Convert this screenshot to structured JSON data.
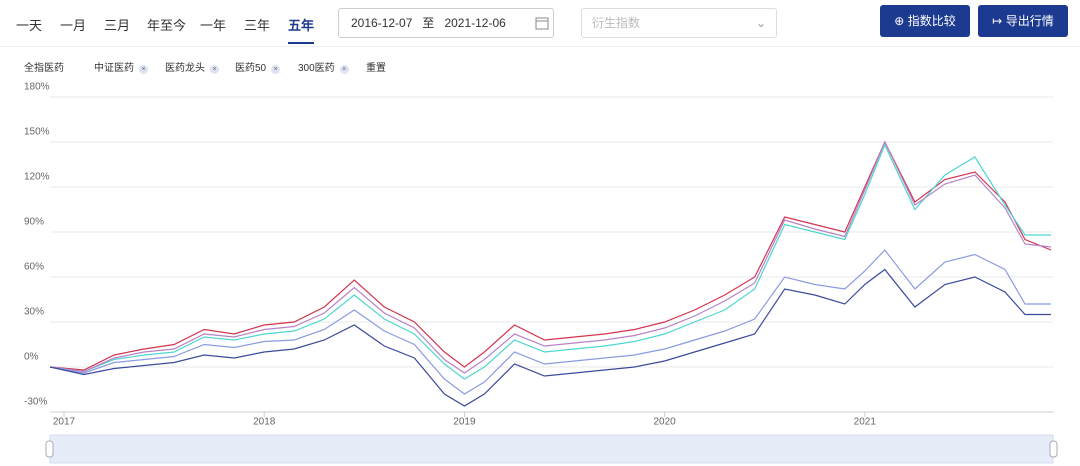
{
  "toolbar": {
    "tabs": [
      "一天",
      "一月",
      "三月",
      "年至今",
      "一年",
      "三年",
      "五年"
    ],
    "active_tab": 6,
    "date_start": "2016-12-07",
    "date_separator": "至",
    "date_end": "2021-12-06",
    "dropdown_placeholder": "衍生指数",
    "compare_button": "指数比较",
    "export_button": "导出行情"
  },
  "filters": {
    "reset": "重置"
  },
  "chart_data": {
    "type": "line",
    "x": [
      2016.93,
      2017.1,
      2017.25,
      2017.4,
      2017.55,
      2017.7,
      2017.85,
      2018.0,
      2018.15,
      2018.3,
      2018.45,
      2018.6,
      2018.75,
      2018.9,
      2019.0,
      2019.1,
      2019.25,
      2019.4,
      2019.55,
      2019.7,
      2019.85,
      2020.0,
      2020.15,
      2020.3,
      2020.45,
      2020.6,
      2020.75,
      2020.9,
      2021.0,
      2021.1,
      2021.25,
      2021.4,
      2021.55,
      2021.7,
      2021.8,
      2021.93
    ],
    "series": [
      {
        "name": "全指医药",
        "color": "#d2344f",
        "values": [
          0,
          -2,
          8,
          12,
          15,
          25,
          22,
          28,
          30,
          40,
          58,
          40,
          30,
          10,
          0,
          10,
          28,
          18,
          20,
          22,
          25,
          30,
          38,
          48,
          60,
          100,
          95,
          90,
          120,
          150,
          110,
          125,
          130,
          110,
          85,
          78
        ]
      },
      {
        "name": "中证医药",
        "color": "#4fd6d0",
        "values": [
          0,
          -3,
          5,
          8,
          10,
          20,
          18,
          22,
          24,
          32,
          48,
          32,
          22,
          2,
          -8,
          0,
          18,
          10,
          12,
          14,
          17,
          22,
          30,
          38,
          52,
          95,
          90,
          85,
          115,
          148,
          105,
          128,
          140,
          108,
          88,
          88
        ]
      },
      {
        "name": "医药龙头",
        "color": "#b782c8",
        "values": [
          0,
          -3,
          6,
          10,
          12,
          22,
          20,
          25,
          27,
          36,
          53,
          36,
          26,
          5,
          -4,
          5,
          22,
          14,
          16,
          18,
          21,
          26,
          34,
          44,
          56,
          98,
          92,
          87,
          118,
          150,
          108,
          122,
          128,
          106,
          82,
          80
        ]
      },
      {
        "name": "医药50",
        "color": "#8b9be0",
        "values": [
          0,
          -4,
          3,
          5,
          7,
          15,
          13,
          17,
          18,
          25,
          38,
          24,
          15,
          -8,
          -18,
          -10,
          10,
          2,
          4,
          6,
          8,
          12,
          18,
          24,
          32,
          60,
          55,
          52,
          64,
          78,
          52,
          70,
          75,
          65,
          42,
          42
        ]
      },
      {
        "name": "300医药",
        "color": "#3c4a9b",
        "values": [
          0,
          -5,
          -1,
          1,
          3,
          8,
          6,
          10,
          12,
          18,
          28,
          14,
          6,
          -18,
          -26,
          -18,
          2,
          -6,
          -4,
          -2,
          0,
          4,
          10,
          16,
          22,
          52,
          48,
          42,
          55,
          65,
          40,
          55,
          60,
          50,
          35,
          35
        ]
      }
    ],
    "xlim": [
      2016.93,
      2021.94
    ],
    "xticks": [
      2017,
      2018,
      2019,
      2020,
      2021
    ],
    "ylim": [
      -30,
      180
    ],
    "yticks": [
      {
        "value": -30,
        "label": "-30%"
      },
      {
        "value": 0,
        "label": "0%"
      },
      {
        "value": 30,
        "label": "30%"
      },
      {
        "value": 60,
        "label": "60%"
      },
      {
        "value": 90,
        "label": "90%"
      },
      {
        "value": 120,
        "label": "120%"
      },
      {
        "value": 150,
        "label": "150%"
      },
      {
        "value": 180,
        "label": "180%"
      }
    ],
    "grid": true
  }
}
